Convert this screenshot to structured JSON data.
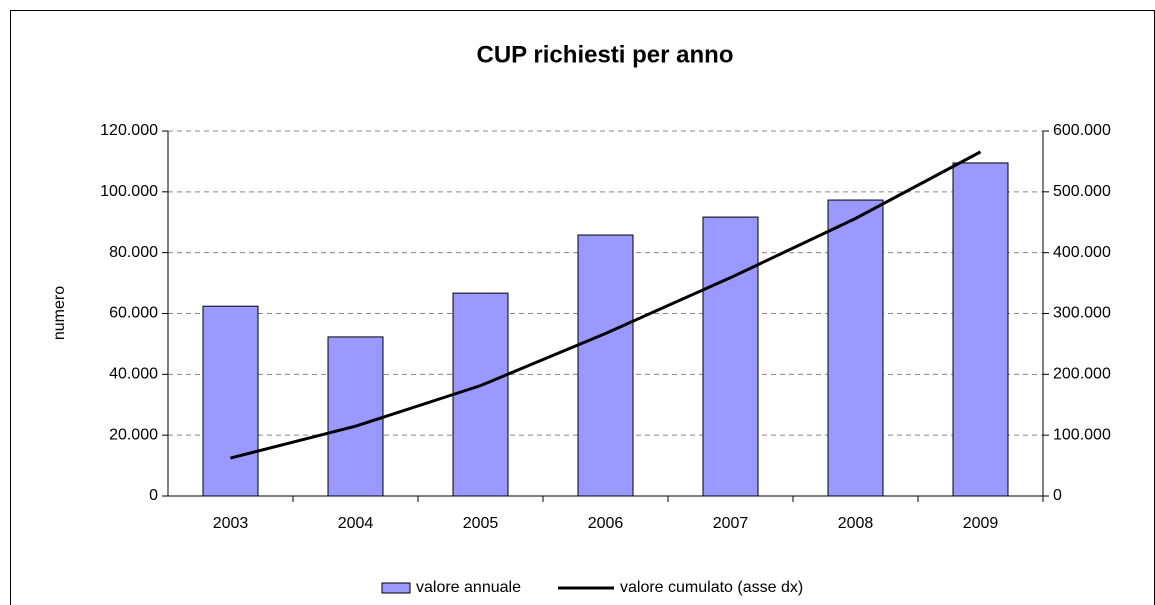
{
  "chart_data": {
    "type": "bar",
    "title": "CUP richiesti per anno",
    "ylabel": "numero",
    "categories": [
      "2003",
      "2004",
      "2005",
      "2006",
      "2007",
      "2008",
      "2009"
    ],
    "series": [
      {
        "name": "valore annuale",
        "type": "bar",
        "color": "#9999ff",
        "values": [
          62400,
          52300,
          66700,
          85800,
          91700,
          97300,
          109500
        ]
      },
      {
        "name": "valore cumulato (asse dx)",
        "type": "line",
        "axis": "y2",
        "color": "#000000",
        "values": [
          62400,
          114700,
          181400,
          267200,
          358900,
          456200,
          565700
        ]
      }
    ],
    "ylim": [
      0,
      120000
    ],
    "yticks": [
      0,
      {
        "value": 20000,
        "label": "20.000"
      },
      {
        "value": 40000,
        "label": "40.000"
      },
      {
        "value": 60000,
        "label": "60.000"
      },
      {
        "value": 80000,
        "label": "80.000"
      },
      {
        "value": 100000,
        "label": "100.000"
      },
      {
        "value": 120000,
        "label": "120.000"
      }
    ],
    "y2lim": [
      0,
      600000
    ],
    "y2ticks": [
      0,
      {
        "value": 100000,
        "label": "100.000"
      },
      {
        "value": 200000,
        "label": "200.000"
      },
      {
        "value": 300000,
        "label": "300.000"
      },
      {
        "value": 400000,
        "label": "400.000"
      },
      {
        "value": 500000,
        "label": "500.000"
      },
      {
        "value": 600000,
        "label": "600.000"
      }
    ],
    "grid": true,
    "legend": "bottom"
  }
}
